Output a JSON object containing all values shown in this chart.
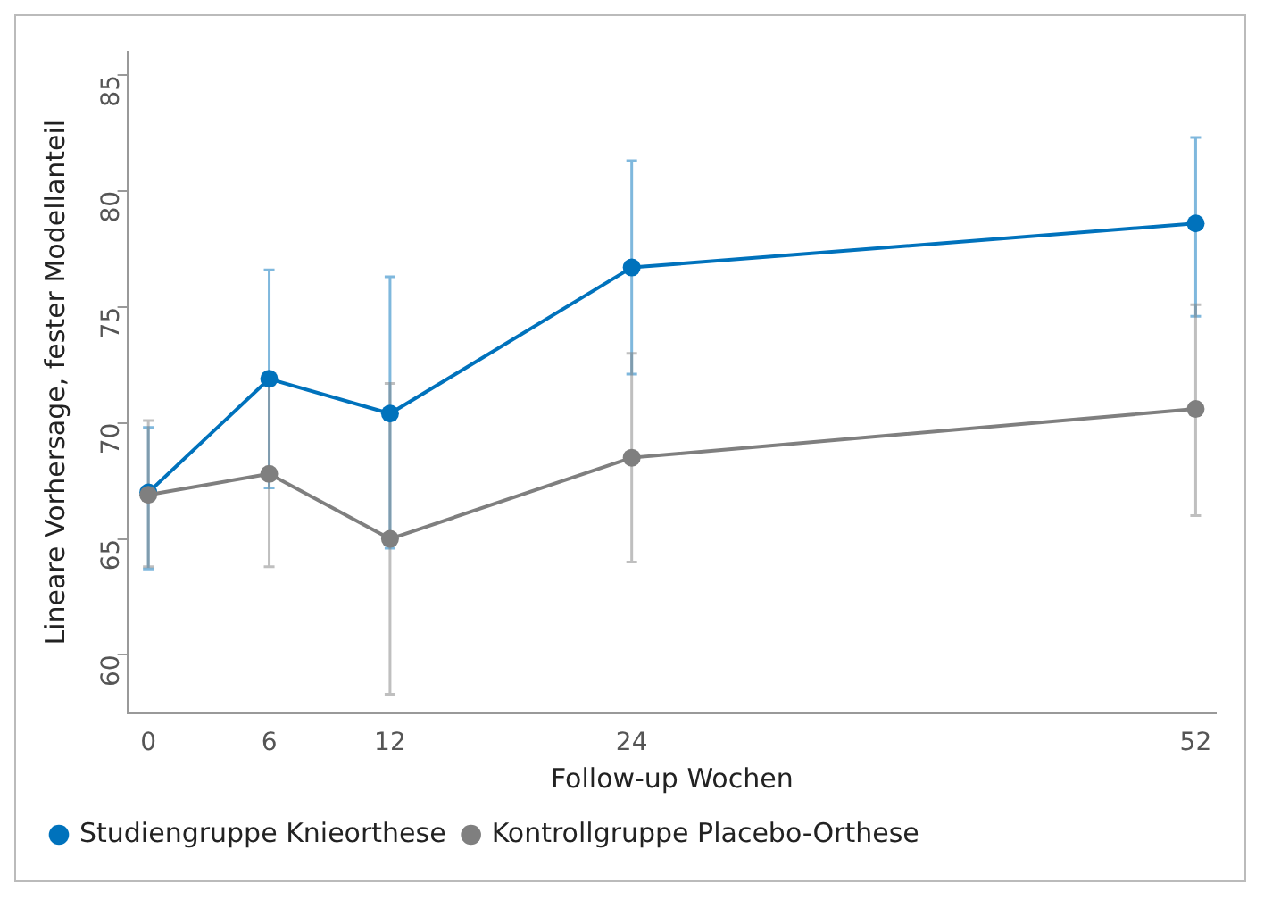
{
  "chart_data": {
    "type": "line",
    "xlabel": "Follow-up Wochen",
    "ylabel": "Lineare Vorhersage, fester Modellanteil",
    "xlim": [
      -1,
      53
    ],
    "xticks": [
      0,
      6,
      12,
      24,
      52
    ],
    "ylim": [
      57.5,
      86
    ],
    "yticks": [
      60,
      65,
      70,
      75,
      80,
      85
    ],
    "x": [
      0,
      6,
      12,
      24,
      52
    ],
    "series": [
      {
        "name": "Studiengruppe Knieorthese",
        "color": "#0072bc",
        "values": [
          67,
          71.9,
          70.4,
          76.7,
          78.6
        ],
        "errors": [
          [
            63.7,
            69.8
          ],
          [
            67.2,
            76.6
          ],
          [
            64.6,
            76.3
          ],
          [
            72.1,
            81.3
          ],
          [
            74.6,
            82.3
          ]
        ]
      },
      {
        "name": "Kontrollgruppe Placebo-Orthese",
        "color": "#7f7f7f",
        "values": [
          66.9,
          67.8,
          65.0,
          68.5,
          70.6
        ],
        "errors": [
          [
            63.8,
            70.1
          ],
          [
            63.8,
            71.6
          ],
          [
            58.3,
            71.7
          ],
          [
            64.0,
            73.0
          ],
          [
            66.0,
            75.1
          ]
        ]
      }
    ],
    "grid": false,
    "legend": "bottom",
    "marker": "circle",
    "line_style": "solid"
  }
}
